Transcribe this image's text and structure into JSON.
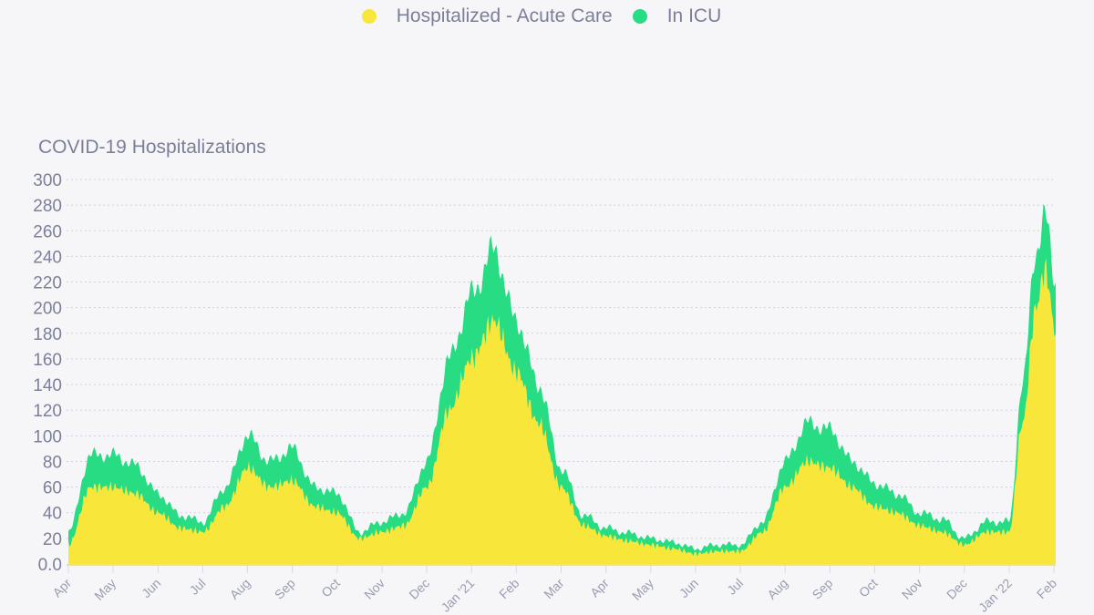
{
  "chart_data": {
    "type": "area",
    "stacked": true,
    "title": "COVID-19 Hospitalizations",
    "xlabel": "",
    "ylabel": "",
    "ylim": [
      0,
      300
    ],
    "yticks": [
      "0.0",
      "20",
      "40",
      "60",
      "80",
      "100",
      "120",
      "140",
      "160",
      "180",
      "200",
      "220",
      "240",
      "260",
      "280",
      "300"
    ],
    "xticks": [
      "Apr",
      "May",
      "Jun",
      "Jul",
      "Aug",
      "Sep",
      "Oct",
      "Nov",
      "Dec",
      "Jan '21",
      "Feb",
      "Mar",
      "Apr",
      "May",
      "Jun",
      "Jul",
      "Aug",
      "Sep",
      "Oct",
      "Nov",
      "Dec",
      "Jan '22",
      "Feb"
    ],
    "grid": true,
    "legend_position": "top-center",
    "x_unit": "months since Apr 2020",
    "x": [
      0,
      0.5,
      1,
      1.5,
      2,
      2.5,
      3,
      3.5,
      4,
      4.5,
      5,
      5.5,
      6,
      6.5,
      7,
      7.5,
      8,
      8.5,
      9,
      9.5,
      10,
      10.5,
      11,
      11.5,
      12,
      12.5,
      13,
      13.5,
      14,
      14.5,
      15,
      15.5,
      16,
      16.5,
      17,
      17.5,
      18,
      18.5,
      19,
      19.5,
      20,
      20.5,
      21,
      21.3,
      21.6,
      21.8,
      22.05
    ],
    "series": [
      {
        "name": "Hospitalized - Acute Care",
        "color": "#f9e63a",
        "values": [
          15,
          60,
          60,
          55,
          40,
          28,
          25,
          45,
          75,
          60,
          65,
          45,
          40,
          20,
          25,
          30,
          60,
          120,
          160,
          190,
          150,
          110,
          60,
          30,
          22,
          18,
          15,
          12,
          8,
          10,
          10,
          25,
          60,
          80,
          75,
          60,
          45,
          40,
          30,
          25,
          15,
          25,
          25,
          110,
          200,
          230,
          180
        ]
      },
      {
        "name": "In ICU",
        "color": "#27dc83",
        "values": [
          10,
          25,
          25,
          22,
          15,
          10,
          8,
          15,
          25,
          20,
          25,
          15,
          15,
          5,
          8,
          10,
          20,
          40,
          50,
          55,
          40,
          30,
          15,
          8,
          6,
          6,
          5,
          5,
          4,
          5,
          5,
          8,
          20,
          30,
          30,
          20,
          18,
          15,
          10,
          10,
          5,
          8,
          8,
          30,
          45,
          40,
          40
        ]
      }
    ]
  }
}
